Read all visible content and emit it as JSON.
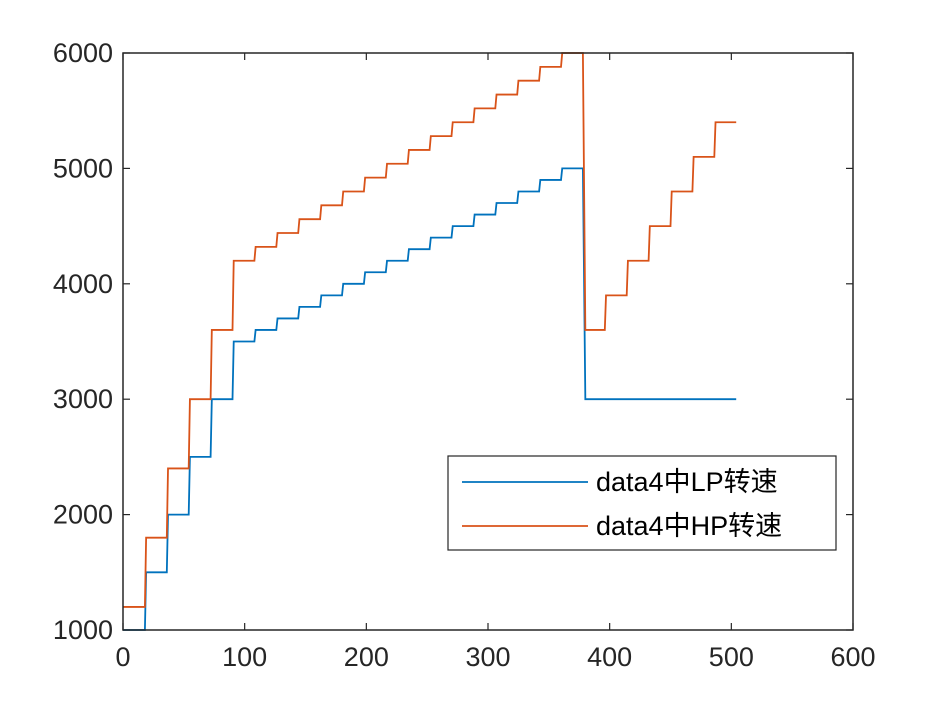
{
  "chart_data": {
    "type": "line",
    "title": "",
    "xlabel": "",
    "ylabel": "",
    "xlim": [
      0,
      600
    ],
    "ylim": [
      1000,
      6000
    ],
    "xticks": [
      0,
      100,
      200,
      300,
      400,
      500,
      600
    ],
    "yticks": [
      1000,
      2000,
      3000,
      4000,
      5000,
      6000
    ],
    "grid": false,
    "legend_position": "lower-right",
    "series": [
      {
        "name": "data4中LP转速",
        "color": "#0072BD",
        "x": [
          0,
          18,
          19,
          36,
          37,
          54,
          55,
          72,
          73,
          90,
          91,
          108,
          109,
          126,
          127,
          144,
          145,
          162,
          163,
          180,
          181,
          198,
          199,
          216,
          217,
          234,
          235,
          252,
          253,
          270,
          271,
          288,
          289,
          306,
          307,
          324,
          325,
          342,
          343,
          360,
          361,
          378,
          380,
          504
        ],
        "y": [
          1000,
          1000,
          1500,
          1500,
          2000,
          2000,
          2500,
          2500,
          3000,
          3000,
          3500,
          3500,
          3600,
          3600,
          3700,
          3700,
          3800,
          3800,
          3900,
          3900,
          4000,
          4000,
          4100,
          4100,
          4200,
          4200,
          4300,
          4300,
          4400,
          4400,
          4500,
          4500,
          4600,
          4600,
          4700,
          4700,
          4800,
          4800,
          4900,
          4900,
          5000,
          5000,
          3000,
          3000
        ]
      },
      {
        "name": "data4中HP转速",
        "color": "#D95319",
        "x": [
          0,
          18,
          19,
          36,
          37,
          54,
          55,
          72,
          73,
          90,
          91,
          108,
          109,
          126,
          127,
          144,
          145,
          162,
          163,
          180,
          181,
          198,
          199,
          216,
          217,
          234,
          235,
          252,
          253,
          270,
          271,
          288,
          289,
          306,
          307,
          324,
          325,
          342,
          343,
          360,
          361,
          378,
          380,
          396,
          397,
          414,
          415,
          432,
          433,
          450,
          451,
          468,
          469,
          486,
          487,
          504
        ],
        "y": [
          1200,
          1200,
          1800,
          1800,
          2400,
          2400,
          3000,
          3000,
          3600,
          3600,
          4200,
          4200,
          4320,
          4320,
          4440,
          4440,
          4560,
          4560,
          4680,
          4680,
          4800,
          4800,
          4920,
          4920,
          5040,
          5040,
          5160,
          5160,
          5280,
          5280,
          5400,
          5400,
          5520,
          5520,
          5640,
          5640,
          5760,
          5760,
          5880,
          5880,
          6000,
          6000,
          3600,
          3600,
          3900,
          3900,
          4200,
          4200,
          4500,
          4500,
          4800,
          4800,
          5100,
          5100,
          5400,
          5400
        ]
      }
    ]
  }
}
